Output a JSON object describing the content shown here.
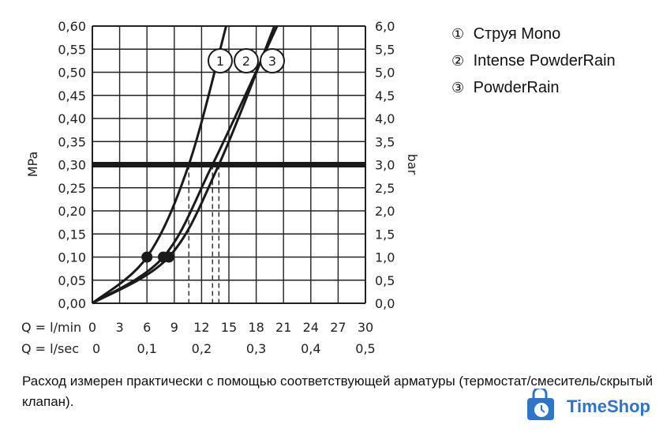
{
  "chart_data": {
    "type": "line",
    "x_ticks_lmin": [
      "0",
      "3",
      "6",
      "9",
      "12",
      "15",
      "18",
      "21",
      "24",
      "27",
      "30"
    ],
    "x_ticks_lsec": [
      "0",
      "0,1",
      "0,2",
      "0,3",
      "0,4",
      "0,5"
    ],
    "x_label_lmin": "Q = l/min",
    "x_label_lsec": "Q = l/sec",
    "y_ticks_mpa": [
      "0,00",
      "0,05",
      "0,10",
      "0,15",
      "0,20",
      "0,25",
      "0,30",
      "0,35",
      "0,40",
      "0,45",
      "0,50",
      "0,55",
      "0,60"
    ],
    "y_ticks_bar": [
      "0,0",
      "0,5",
      "1,0",
      "1,5",
      "2,0",
      "2,5",
      "3,0",
      "3,5",
      "4,0",
      "4,5",
      "5,0",
      "5,5",
      "6,0"
    ],
    "ylabel_left": "MPa",
    "ylabel_right": "bar",
    "xlim": [
      0,
      30
    ],
    "ylim": [
      0,
      0.6
    ],
    "grid": true,
    "reference_pressure": 0.3,
    "series": [
      {
        "name": "1",
        "label": "1",
        "points": [
          [
            0,
            0
          ],
          [
            6,
            0.1
          ],
          [
            10.6,
            0.3
          ],
          [
            14.7,
            0.6
          ]
        ],
        "marker_at": [
          6,
          0.1
        ],
        "flow_at_reference": 10.6
      },
      {
        "name": "2",
        "label": "2",
        "points": [
          [
            0,
            0
          ],
          [
            7.8,
            0.1
          ],
          [
            13.2,
            0.3
          ],
          [
            20.3,
            0.6
          ]
        ],
        "marker_at": [
          7.8,
          0.1
        ],
        "flow_at_reference": 13.2
      },
      {
        "name": "3",
        "label": "3",
        "points": [
          [
            0,
            0
          ],
          [
            8.4,
            0.1
          ],
          [
            13.9,
            0.3
          ],
          [
            20.0,
            0.6
          ]
        ],
        "marker_at": [
          8.4,
          0.1
        ],
        "flow_at_reference": 13.9
      }
    ]
  },
  "legend": [
    {
      "marker": "①",
      "text": "Струя Mono"
    },
    {
      "marker": "②",
      "text": "Intense PowderRain"
    },
    {
      "marker": "③",
      "text": "PowderRain"
    }
  ],
  "caption": "Расход измерен практически с помощью соответствующей арматуры (термостат/смеситель/скрытый клапан).",
  "watermark": {
    "text": "TimeShop",
    "icon": "shopping-bag-clock-icon",
    "color": "#2e74c9"
  }
}
